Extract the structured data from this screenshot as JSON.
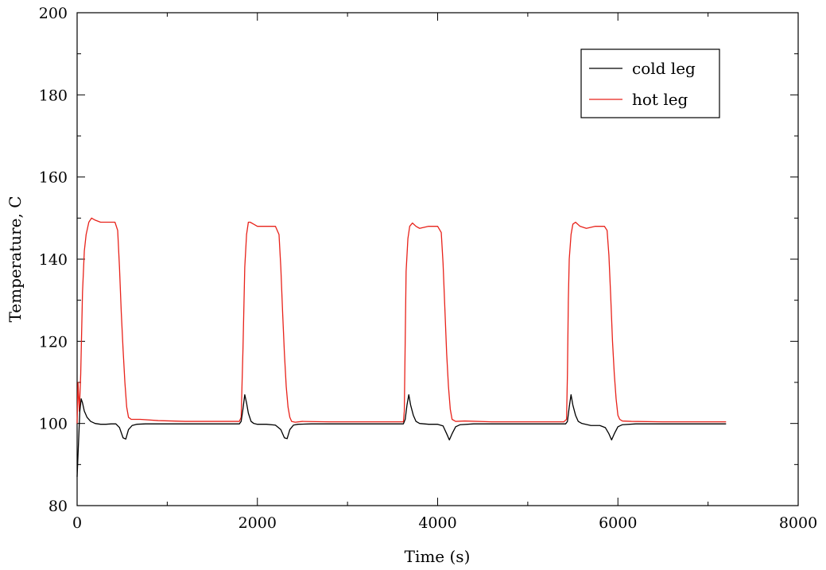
{
  "chart_data": {
    "type": "line",
    "title": "",
    "xlabel": "Time (s)",
    "ylabel": "Temperature, C",
    "xlim": [
      0,
      8000
    ],
    "ylim": [
      80,
      200
    ],
    "x_ticks": [
      0,
      2000,
      4000,
      6000,
      8000
    ],
    "y_ticks": [
      80,
      100,
      120,
      140,
      160,
      180,
      200
    ],
    "x_tick_labels": [
      "0",
      "2000",
      "4000",
      "6000",
      "8000"
    ],
    "y_tick_labels": [
      "80",
      "100",
      "120",
      "140",
      "160",
      "180",
      "200"
    ],
    "grid": false,
    "legend": {
      "position": "top-right",
      "entries": [
        "cold leg",
        "hot leg"
      ]
    },
    "series": [
      {
        "name": "cold leg",
        "color": "#000000",
        "x": [
          0,
          15,
          30,
          45,
          60,
          80,
          110,
          150,
          200,
          260,
          320,
          380,
          430,
          470,
          510,
          540,
          570,
          610,
          660,
          760,
          1000,
          1400,
          1800,
          1820,
          1840,
          1860,
          1880,
          1900,
          1930,
          1960,
          2000,
          2100,
          2200,
          2260,
          2300,
          2330,
          2360,
          2400,
          2450,
          2600,
          3000,
          3400,
          3620,
          3640,
          3660,
          3680,
          3700,
          3730,
          3760,
          3800,
          3900,
          4000,
          4060,
          4100,
          4130,
          4160,
          4200,
          4250,
          4400,
          4800,
          5200,
          5420,
          5440,
          5460,
          5480,
          5500,
          5530,
          5560,
          5600,
          5700,
          5800,
          5860,
          5900,
          5930,
          5960,
          6000,
          6050,
          6200,
          6600,
          7000,
          7200
        ],
        "y": [
          87,
          95,
          103,
          106,
          105,
          103,
          101.5,
          100.5,
          100,
          99.8,
          99.8,
          99.9,
          99.9,
          99,
          96.5,
          96.2,
          98.5,
          99.5,
          99.8,
          99.9,
          99.9,
          99.9,
          99.9,
          100.5,
          103.5,
          107,
          105,
          102.5,
          100.5,
          100,
          99.8,
          99.8,
          99.6,
          98.5,
          96.5,
          96.3,
          98.5,
          99.6,
          99.8,
          99.9,
          99.9,
          99.9,
          99.9,
          101,
          104.5,
          107,
          104.5,
          102,
          100.5,
          100,
          99.8,
          99.8,
          99.4,
          97.5,
          96,
          97.5,
          99.2,
          99.7,
          99.9,
          99.9,
          99.9,
          99.9,
          100.5,
          104,
          107,
          104.5,
          102,
          100.5,
          100,
          99.5,
          99.5,
          99,
          97.5,
          96,
          97.5,
          99.2,
          99.7,
          99.9,
          99.9,
          99.9,
          99.9
        ]
      },
      {
        "name": "hot leg",
        "color": "#e8221a",
        "x": [
          0,
          10,
          25,
          40,
          60,
          80,
          100,
          130,
          160,
          200,
          260,
          320,
          380,
          420,
          450,
          470,
          490,
          510,
          530,
          550,
          570,
          600,
          650,
          700,
          900,
          1200,
          1500,
          1800,
          1820,
          1840,
          1860,
          1880,
          1900,
          1920,
          1960,
          2000,
          2100,
          2200,
          2240,
          2260,
          2280,
          2300,
          2320,
          2340,
          2360,
          2380,
          2420,
          2500,
          2800,
          3200,
          3620,
          3630,
          3640,
          3650,
          3670,
          3690,
          3720,
          3760,
          3800,
          3900,
          4000,
          4040,
          4060,
          4080,
          4100,
          4120,
          4140,
          4160,
          4200,
          4300,
          4600,
          5000,
          5400,
          5430,
          5440,
          5450,
          5460,
          5480,
          5500,
          5530,
          5580,
          5650,
          5750,
          5850,
          5880,
          5900,
          5920,
          5940,
          5960,
          5980,
          6000,
          6020,
          6050,
          6150,
          6500,
          7000,
          7200
        ],
        "y": [
          100,
          110,
          103,
          112,
          132,
          142,
          146,
          149,
          150,
          149.5,
          149,
          149,
          149,
          149,
          147,
          138,
          127,
          118,
          110,
          104,
          101.5,
          101,
          101,
          101,
          100.7,
          100.5,
          100.5,
          100.5,
          101.5,
          118,
          138,
          146,
          149,
          149,
          148.5,
          148,
          148,
          148,
          146,
          138,
          127,
          117,
          109,
          104,
          101.5,
          100.5,
          100.3,
          100.5,
          100.4,
          100.4,
          100.4,
          103,
          120,
          137,
          145,
          148,
          148.8,
          148,
          147.5,
          148,
          148,
          146.5,
          139,
          128,
          117,
          109,
          103.5,
          101,
          100.5,
          100.6,
          100.4,
          100.4,
          100.4,
          101,
          112,
          130,
          140,
          146,
          148.5,
          149,
          148,
          147.5,
          148,
          148,
          147,
          141,
          131,
          120,
          112,
          106,
          102,
          101,
          100.6,
          100.5,
          100.4,
          100.4,
          100.4
        ]
      }
    ]
  }
}
